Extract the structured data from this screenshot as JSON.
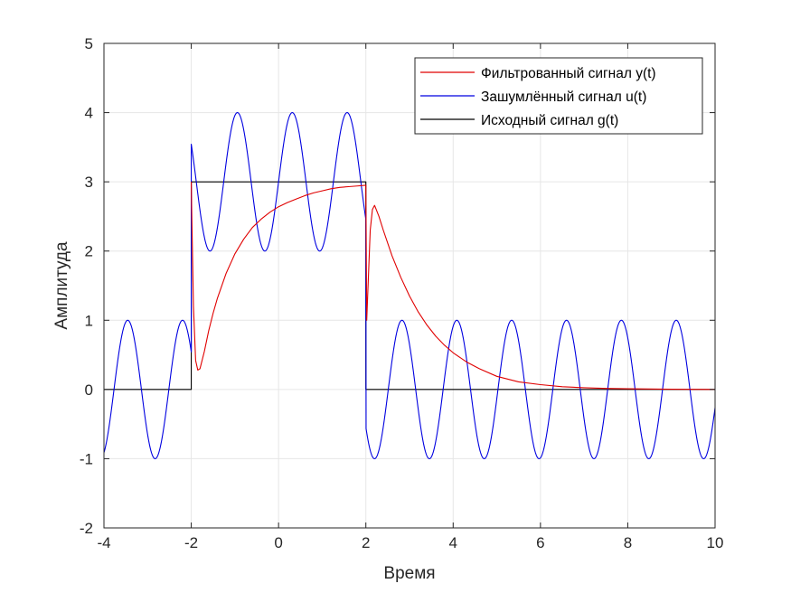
{
  "chart_data": {
    "type": "line",
    "title": "",
    "xlabel": "Время",
    "ylabel": "Амплитуда",
    "xlim": [
      -4,
      10
    ],
    "ylim": [
      -2,
      5
    ],
    "xticks": [
      -4,
      -2,
      0,
      2,
      4,
      6,
      8,
      10
    ],
    "xtick_labels": [
      "-4",
      "-2",
      "0",
      "2",
      "4",
      "6",
      "8",
      "10"
    ],
    "yticks": [
      -2,
      -1,
      0,
      1,
      2,
      3,
      4,
      5
    ],
    "ytick_labels": [
      "-2",
      "-1",
      "0",
      "1",
      "2",
      "3",
      "4",
      "5"
    ],
    "grid": true,
    "legend_position": "top-right",
    "series": [
      {
        "name": "Фильтрованный сигнал y(t)",
        "color": "#e00000",
        "x": [
          -2.0,
          -1.99,
          -1.95,
          -1.9,
          -1.85,
          -1.8,
          -1.7,
          -1.6,
          -1.5,
          -1.4,
          -1.2,
          -1.0,
          -0.8,
          -0.6,
          -0.4,
          -0.2,
          0.0,
          0.2,
          0.4,
          0.6,
          0.8,
          1.0,
          1.2,
          1.4,
          1.6,
          1.8,
          2.0,
          2.02,
          2.1,
          2.15,
          2.2,
          2.3,
          2.4,
          2.6,
          2.8,
          3.0,
          3.2,
          3.4,
          3.6,
          3.8,
          4.0,
          4.3,
          4.6,
          5.0,
          5.5,
          6.0,
          6.5,
          7.0,
          7.5,
          8.0,
          9.0,
          10.0
        ],
        "y": [
          3.0,
          2.6,
          1.2,
          0.42,
          0.28,
          0.3,
          0.55,
          0.85,
          1.1,
          1.32,
          1.68,
          1.96,
          2.17,
          2.34,
          2.46,
          2.56,
          2.64,
          2.7,
          2.75,
          2.8,
          2.84,
          2.87,
          2.9,
          2.92,
          2.93,
          2.94,
          2.95,
          1.0,
          2.3,
          2.6,
          2.66,
          2.5,
          2.3,
          1.93,
          1.62,
          1.35,
          1.12,
          0.93,
          0.77,
          0.64,
          0.53,
          0.4,
          0.3,
          0.19,
          0.11,
          0.07,
          0.04,
          0.025,
          0.015,
          0.01,
          0.004,
          0.0
        ]
      },
      {
        "name": "Зашумлённый сигнал u(t)",
        "color": "#0000e0",
        "function": "g(t) + sin(5t)",
        "x": [
          -4.0,
          -3.75,
          -3.5,
          -3.25,
          -3.0,
          -2.75,
          -2.5,
          -2.25,
          -2.0,
          -2.0,
          -1.75,
          -1.5,
          -1.25,
          -1.0,
          -0.75,
          -0.5,
          -0.25,
          0.0,
          0.25,
          0.5,
          0.75,
          1.0,
          1.25,
          1.5,
          1.75,
          2.0,
          2.0,
          2.25,
          2.5,
          2.75,
          3.0,
          3.5,
          4.0,
          4.5,
          5.0,
          6.0,
          7.0,
          8.0,
          9.0,
          10.0
        ],
        "y": [
          -0.91,
          0.03,
          0.98,
          0.11,
          -0.65,
          -0.98,
          0.07,
          0.98,
          0.54,
          3.54,
          2.38,
          2.06,
          3.95,
          4.0,
          2.38,
          2.4,
          2.05,
          3.0,
          3.95,
          3.6,
          2.4,
          2.04,
          3.0,
          3.94,
          3.6,
          2.46,
          -0.54,
          -0.98,
          -0.07,
          0.98,
          0.65,
          -0.48,
          0.91,
          -0.58,
          -0.13,
          -0.99,
          -0.99,
          -0.75,
          -0.98,
          -0.26
        ]
      },
      {
        "name": "Исходный сигнал g(t)",
        "color": "#000000",
        "x": [
          -4,
          -2,
          -2,
          2,
          2,
          10
        ],
        "y": [
          0,
          0,
          3,
          3,
          0,
          0
        ]
      }
    ]
  }
}
